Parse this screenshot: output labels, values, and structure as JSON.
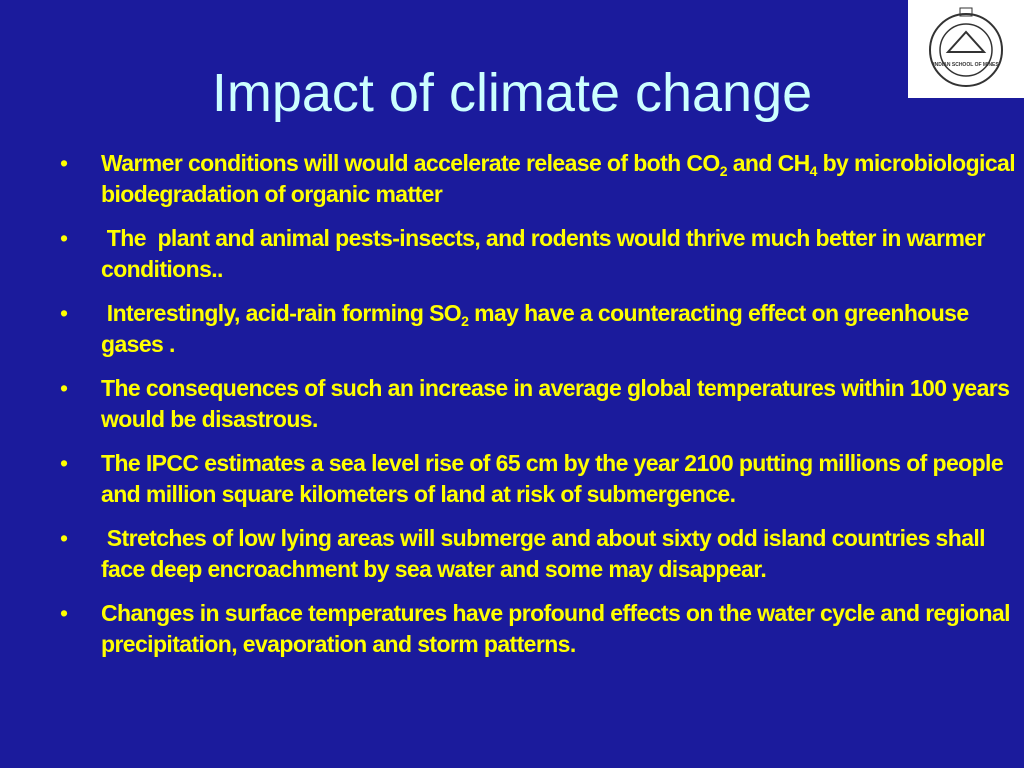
{
  "header": {
    "title": "Impact of climate change",
    "logo_text": "INDIAN SCHOOL OF MINES"
  },
  "bullets": [
    {
      "parts": [
        "Warmer conditions will would accelerate release of both CO",
        "2",
        " and CH",
        "4",
        " by microbiological biodegradation of organic matter"
      ]
    },
    {
      "parts": [
        " The  plant and animal pests-insects, and rodents would thrive much better in warmer conditions.."
      ]
    },
    {
      "parts": [
        " Interestingly, acid-rain forming SO",
        "2",
        " may have a counteracting effect on greenhouse gases ."
      ]
    },
    {
      "parts": [
        "The consequences of such an increase in average global temperatures within 100 years would be disastrous."
      ]
    },
    {
      "parts": [
        "The IPCC estimates a sea level rise of 65 cm by the year 2100 putting millions of people and million square kilometers of land at risk of submergence."
      ]
    },
    {
      "parts": [
        " Stretches of low lying areas will submerge and about sixty odd island countries shall face deep encroachment by sea water and some may disappear."
      ]
    },
    {
      "parts": [
        "Changes in surface temperatures have profound effects on the water cycle and regional precipitation, evaporation and storm patterns."
      ]
    }
  ]
}
